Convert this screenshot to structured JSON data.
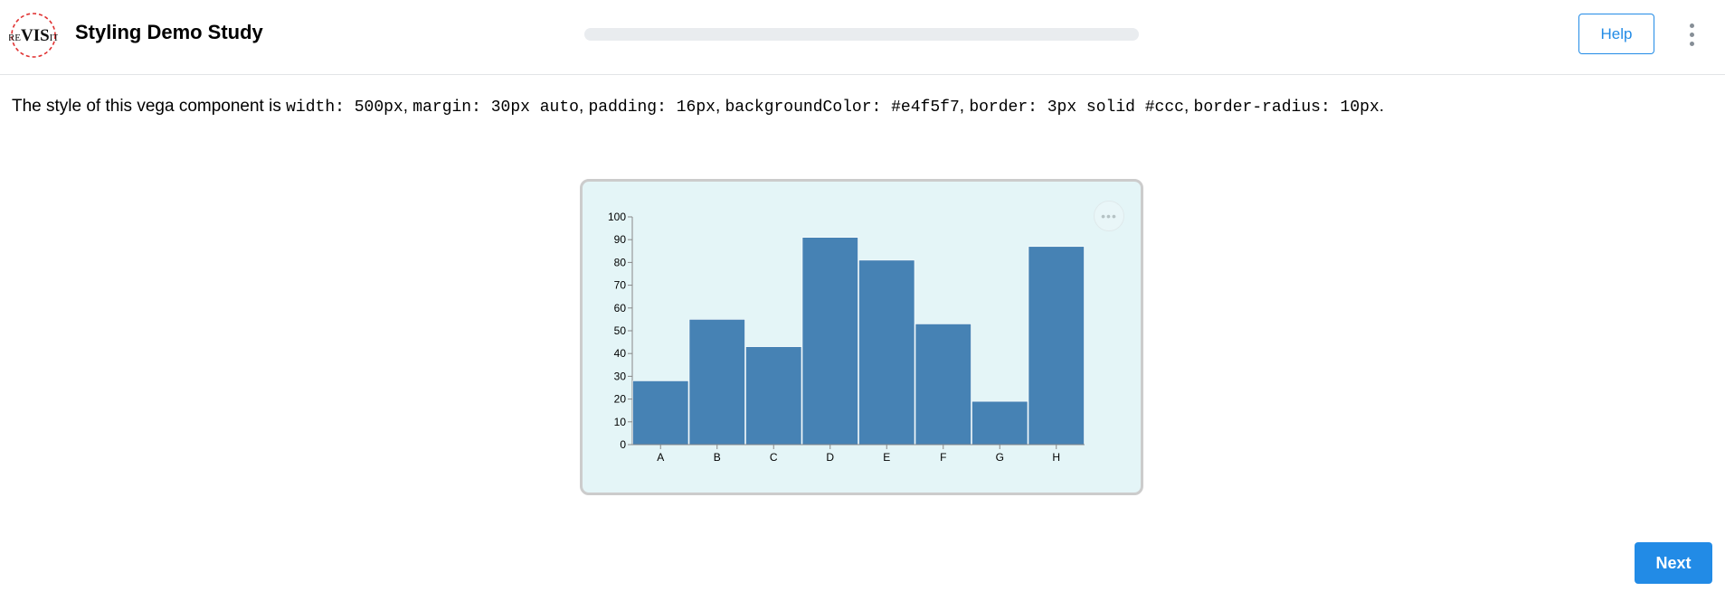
{
  "header": {
    "logo_text": "reVISit",
    "title": "Styling Demo Study",
    "progress": 0,
    "help_label": "Help",
    "menu_icon": "dots-vertical-icon"
  },
  "description": {
    "prefix": "The style of this vega component is ",
    "width_code": "width: 500px",
    "margin_code": "margin: 30px auto",
    "padding_code": "padding: 16px",
    "bg_code": "backgroundColor: #e4f5f7",
    "border_code": "border: 3px solid #ccc",
    "radius_code": "border-radius: 10px",
    "sep": ", ",
    "suffix": "."
  },
  "vega": {
    "actions_icon": "ellipsis-icon",
    "actions_glyph": "•••"
  },
  "chart_data": {
    "type": "bar",
    "categories": [
      "A",
      "B",
      "C",
      "D",
      "E",
      "F",
      "G",
      "H"
    ],
    "values": [
      28,
      55,
      43,
      91,
      81,
      53,
      19,
      87
    ],
    "title": "",
    "xlabel": "",
    "ylabel": "",
    "ylim": [
      0,
      100
    ],
    "yticks": [
      0,
      10,
      20,
      30,
      40,
      50,
      60,
      70,
      80,
      90,
      100
    ],
    "bar_color": "#4682b4",
    "grid": false
  },
  "footer": {
    "next_label": "Next"
  },
  "colors": {
    "accent": "#228be6",
    "card_background": "#e4f5f7",
    "card_border": "#cccccc"
  }
}
